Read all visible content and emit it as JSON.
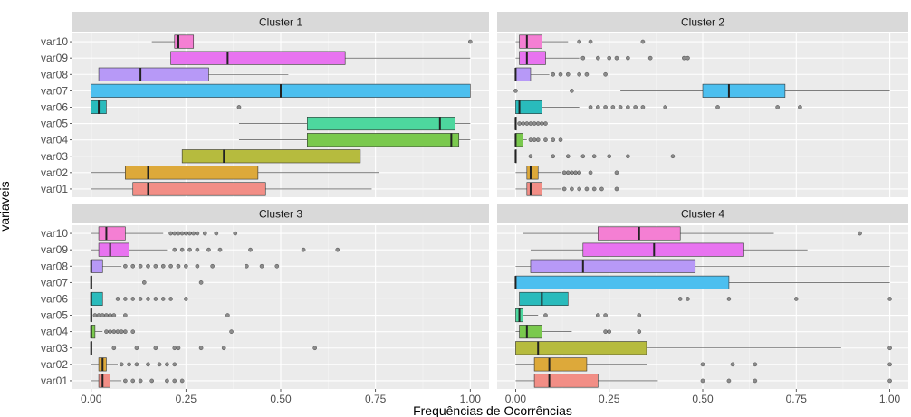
{
  "chart_data": {
    "type": "boxplot",
    "xlabel": "Frequências de Ocorrências",
    "ylabel": "variaveis",
    "xlim": [
      0,
      1
    ],
    "xticks": [
      "0.00",
      "0.25",
      "0.50",
      "0.75",
      "1.00"
    ],
    "categories": [
      "var10",
      "var09",
      "var08",
      "var07",
      "var06",
      "var05",
      "var04",
      "var03",
      "var02",
      "var01"
    ],
    "colors": {
      "var10": "#F47FD3",
      "var09": "#E873F0",
      "var08": "#B799F7",
      "var07": "#4CBFEF",
      "var06": "#29BBBC",
      "var05": "#4DD79E",
      "var04": "#7AC94D",
      "var03": "#B6BB3E",
      "var02": "#DDA93A",
      "var01": "#F28E86"
    },
    "panels": [
      {
        "title": "Cluster 1",
        "boxes": {
          "var10": {
            "lw": 0.16,
            "q1": 0.22,
            "med": 0.23,
            "q3": 0.27,
            "uw": 0.27,
            "out": [
              1.0
            ]
          },
          "var09": {
            "lw": 0.21,
            "q1": 0.21,
            "med": 0.36,
            "q3": 0.67,
            "uw": 1.0,
            "out": []
          },
          "var08": {
            "lw": 0.02,
            "q1": 0.02,
            "med": 0.13,
            "q3": 0.31,
            "uw": 0.52,
            "out": []
          },
          "var07": {
            "lw": 0.0,
            "q1": 0.0,
            "med": 0.5,
            "q3": 1.0,
            "uw": 1.0,
            "out": []
          },
          "var06": {
            "lw": 0.0,
            "q1": 0.0,
            "med": 0.02,
            "q3": 0.04,
            "uw": 0.04,
            "out": [
              0.39
            ]
          },
          "var05": {
            "lw": 0.39,
            "q1": 0.57,
            "med": 0.92,
            "q3": 0.96,
            "uw": 1.0,
            "out": []
          },
          "var04": {
            "lw": 0.39,
            "q1": 0.57,
            "med": 0.95,
            "q3": 0.97,
            "uw": 1.0,
            "out": []
          },
          "var03": {
            "lw": 0.0,
            "q1": 0.24,
            "med": 0.35,
            "q3": 0.71,
            "uw": 0.82,
            "out": []
          },
          "var02": {
            "lw": 0.0,
            "q1": 0.09,
            "med": 0.15,
            "q3": 0.44,
            "uw": 0.76,
            "out": []
          },
          "var01": {
            "lw": 0.0,
            "q1": 0.11,
            "med": 0.15,
            "q3": 0.46,
            "uw": 0.74,
            "out": []
          }
        }
      },
      {
        "title": "Cluster 2",
        "boxes": {
          "var10": {
            "lw": 0.0,
            "q1": 0.01,
            "med": 0.03,
            "q3": 0.07,
            "uw": 0.14,
            "out": [
              0.17,
              0.2,
              0.34
            ]
          },
          "var09": {
            "lw": 0.0,
            "q1": 0.01,
            "med": 0.03,
            "q3": 0.08,
            "uw": 0.17,
            "out": [
              0.18,
              0.22,
              0.25,
              0.27,
              0.3,
              0.36,
              0.45,
              0.46
            ]
          },
          "var08": {
            "lw": 0.0,
            "q1": 0.0,
            "med": 0.0,
            "q3": 0.04,
            "uw": 0.09,
            "out": [
              0.1,
              0.12,
              0.14,
              0.17,
              0.19,
              0.24
            ]
          },
          "var07": {
            "lw": 0.28,
            "q1": 0.5,
            "med": 0.57,
            "q3": 0.72,
            "uw": 1.0,
            "out": [
              0.0,
              0.15
            ]
          },
          "var06": {
            "lw": 0.0,
            "q1": 0.0,
            "med": 0.01,
            "q3": 0.07,
            "uw": 0.17,
            "out": [
              0.2,
              0.22,
              0.24,
              0.26,
              0.28,
              0.3,
              0.32,
              0.34,
              0.4,
              0.54,
              0.7,
              0.76
            ]
          },
          "var05": {
            "lw": 0.0,
            "q1": 0.0,
            "med": 0.0,
            "q3": 0.0,
            "uw": 0.0,
            "out": [
              0.01,
              0.02,
              0.03,
              0.04,
              0.05,
              0.06,
              0.07,
              0.08
            ]
          },
          "var04": {
            "lw": 0.0,
            "q1": 0.0,
            "med": 0.0,
            "q3": 0.02,
            "uw": 0.03,
            "out": [
              0.04,
              0.05,
              0.06,
              0.08,
              0.1,
              0.12
            ]
          },
          "var03": {
            "lw": 0.0,
            "q1": 0.0,
            "med": 0.0,
            "q3": 0.0,
            "uw": 0.0,
            "out": [
              0.04,
              0.1,
              0.14,
              0.18,
              0.21,
              0.25,
              0.3,
              0.42
            ]
          },
          "var02": {
            "lw": 0.0,
            "q1": 0.03,
            "med": 0.04,
            "q3": 0.06,
            "uw": 0.12,
            "out": [
              0.13,
              0.14,
              0.15,
              0.16,
              0.17,
              0.2,
              0.27
            ]
          },
          "var01": {
            "lw": 0.0,
            "q1": 0.03,
            "med": 0.04,
            "q3": 0.07,
            "uw": 0.12,
            "out": [
              0.13,
              0.15,
              0.17,
              0.19,
              0.21,
              0.23,
              0.27
            ]
          }
        }
      },
      {
        "title": "Cluster 3",
        "boxes": {
          "var10": {
            "lw": 0.0,
            "q1": 0.02,
            "med": 0.04,
            "q3": 0.09,
            "uw": 0.19,
            "out": [
              0.21,
              0.22,
              0.23,
              0.24,
              0.25,
              0.26,
              0.27,
              0.28,
              0.3,
              0.33,
              0.38
            ]
          },
          "var09": {
            "lw": 0.0,
            "q1": 0.02,
            "med": 0.05,
            "q3": 0.1,
            "uw": 0.2,
            "out": [
              0.22,
              0.24,
              0.26,
              0.28,
              0.31,
              0.34,
              0.42,
              0.56,
              0.65
            ]
          },
          "var08": {
            "lw": 0.0,
            "q1": 0.0,
            "med": 0.0,
            "q3": 0.03,
            "uw": 0.08,
            "out": [
              0.09,
              0.11,
              0.13,
              0.15,
              0.17,
              0.19,
              0.21,
              0.23,
              0.25,
              0.28,
              0.32,
              0.41,
              0.45,
              0.49
            ]
          },
          "var07": {
            "lw": 0.0,
            "q1": 0.0,
            "med": 0.0,
            "q3": 0.0,
            "uw": 0.0,
            "out": [
              0.14,
              0.29
            ]
          },
          "var06": {
            "lw": 0.0,
            "q1": 0.0,
            "med": 0.0,
            "q3": 0.03,
            "uw": 0.06,
            "out": [
              0.07,
              0.09,
              0.11,
              0.13,
              0.15,
              0.17,
              0.19,
              0.21,
              0.25
            ]
          },
          "var05": {
            "lw": 0.0,
            "q1": 0.0,
            "med": 0.0,
            "q3": 0.0,
            "uw": 0.0,
            "out": [
              0.01,
              0.02,
              0.03,
              0.04,
              0.05,
              0.06,
              0.09,
              0.36
            ]
          },
          "var04": {
            "lw": 0.0,
            "q1": 0.0,
            "med": 0.0,
            "q3": 0.01,
            "uw": 0.03,
            "out": [
              0.04,
              0.05,
              0.06,
              0.07,
              0.08,
              0.09,
              0.11,
              0.37
            ]
          },
          "var03": {
            "lw": 0.0,
            "q1": 0.0,
            "med": 0.0,
            "q3": 0.0,
            "uw": 0.0,
            "out": [
              0.06,
              0.12,
              0.17,
              0.22,
              0.23,
              0.29,
              0.35,
              0.59
            ]
          },
          "var02": {
            "lw": 0.0,
            "q1": 0.02,
            "med": 0.03,
            "q3": 0.04,
            "uw": 0.07,
            "out": [
              0.08,
              0.1,
              0.12,
              0.15,
              0.18,
              0.2,
              0.22
            ]
          },
          "var01": {
            "lw": 0.0,
            "q1": 0.02,
            "med": 0.03,
            "q3": 0.05,
            "uw": 0.08,
            "out": [
              0.09,
              0.11,
              0.13,
              0.16,
              0.2,
              0.22,
              0.24
            ]
          }
        }
      },
      {
        "title": "Cluster 4",
        "boxes": {
          "var10": {
            "lw": 0.02,
            "q1": 0.22,
            "med": 0.33,
            "q3": 0.44,
            "uw": 0.69,
            "out": [
              0.92
            ]
          },
          "var09": {
            "lw": 0.04,
            "q1": 0.18,
            "med": 0.37,
            "q3": 0.61,
            "uw": 0.78,
            "out": []
          },
          "var08": {
            "lw": 0.0,
            "q1": 0.04,
            "med": 0.18,
            "q3": 0.48,
            "uw": 1.0,
            "out": []
          },
          "var07": {
            "lw": 0.0,
            "q1": 0.0,
            "med": 0.0,
            "q3": 0.57,
            "uw": 1.0,
            "out": []
          },
          "var06": {
            "lw": 0.0,
            "q1": 0.01,
            "med": 0.07,
            "q3": 0.14,
            "uw": 0.31,
            "out": [
              0.44,
              0.46,
              0.57,
              0.75,
              1.0
            ]
          },
          "var05": {
            "lw": 0.0,
            "q1": 0.0,
            "med": 0.01,
            "q3": 0.02,
            "uw": 0.06,
            "out": [
              0.08,
              0.22,
              0.24,
              0.33
            ]
          },
          "var04": {
            "lw": 0.0,
            "q1": 0.01,
            "med": 0.03,
            "q3": 0.07,
            "uw": 0.15,
            "out": [
              0.24,
              0.25,
              0.33
            ]
          },
          "var03": {
            "lw": 0.0,
            "q1": 0.0,
            "med": 0.06,
            "q3": 0.35,
            "uw": 0.87,
            "out": [
              1.0
            ]
          },
          "var02": {
            "lw": 0.0,
            "q1": 0.05,
            "med": 0.09,
            "q3": 0.19,
            "uw": 0.35,
            "out": [
              0.5,
              0.58,
              0.64,
              1.0
            ]
          },
          "var01": {
            "lw": 0.0,
            "q1": 0.05,
            "med": 0.09,
            "q3": 0.22,
            "uw": 0.38,
            "out": [
              0.5,
              0.57,
              0.64,
              1.0
            ]
          }
        }
      }
    ]
  }
}
